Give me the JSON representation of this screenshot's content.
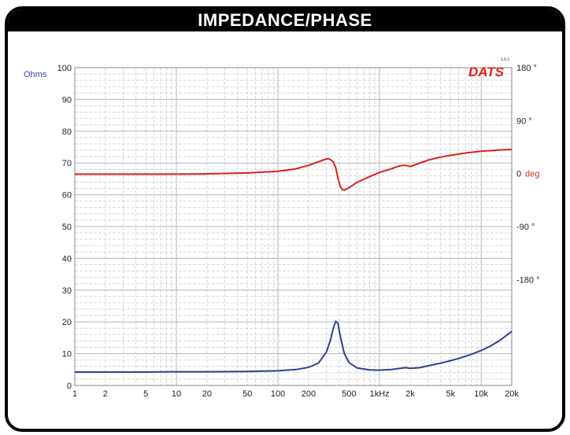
{
  "title": "IMPEDANCE/PHASE",
  "brand": "DATS",
  "version": "1.0.1",
  "colors": {
    "impedance": "#2f3f95",
    "phase": "#e01e1e",
    "grid_major": "#b8b8b8",
    "grid_minor": "#d7d7d7"
  },
  "chart_data": {
    "type": "line",
    "xscale": "log",
    "xlim": [
      1,
      20000
    ],
    "xticks": [
      {
        "v": 1,
        "label": "1"
      },
      {
        "v": 2,
        "label": "2"
      },
      {
        "v": 5,
        "label": "5"
      },
      {
        "v": 10,
        "label": "10"
      },
      {
        "v": 20,
        "label": "20"
      },
      {
        "v": 50,
        "label": "50"
      },
      {
        "v": 100,
        "label": "100"
      },
      {
        "v": 200,
        "label": "200"
      },
      {
        "v": 500,
        "label": "500"
      },
      {
        "v": 1000,
        "label": "1kHz"
      },
      {
        "v": 2000,
        "label": "2k"
      },
      {
        "v": 5000,
        "label": "5k"
      },
      {
        "v": 10000,
        "label": "10k"
      },
      {
        "v": 20000,
        "label": "20k"
      }
    ],
    "ylabel_left": "Ohms",
    "ylim_left": [
      0,
      100
    ],
    "yticks_left": [
      "0",
      "10",
      "20",
      "30",
      "40",
      "50",
      "60",
      "70",
      "80",
      "90",
      "100"
    ],
    "ylabel_right": "deg",
    "ylim_right": [
      -360,
      180
    ],
    "yticks_right": [
      {
        "v": 180,
        "label": "180 °"
      },
      {
        "v": 90,
        "label": "90 °"
      },
      {
        "v": 0,
        "label": "0"
      },
      {
        "v": -90,
        "label": "-90 °"
      },
      {
        "v": -180,
        "label": "-180 °"
      }
    ],
    "grid": true,
    "series": [
      {
        "key": "impedance",
        "axis": "left",
        "x": [
          1,
          2,
          5,
          10,
          20,
          50,
          100,
          150,
          200,
          250,
          300,
          330,
          350,
          370,
          390,
          410,
          450,
          500,
          600,
          800,
          1000,
          1300,
          1600,
          1800,
          2000,
          2500,
          3000,
          4000,
          5000,
          6000,
          8000,
          10000,
          12000,
          15000,
          20000
        ],
        "y": [
          4.2,
          4.2,
          4.2,
          4.3,
          4.3,
          4.4,
          4.6,
          5.0,
          5.7,
          7.0,
          10.5,
          14.5,
          18.0,
          20.2,
          19.5,
          15.5,
          10.0,
          7.2,
          5.5,
          4.9,
          4.8,
          5.0,
          5.4,
          5.6,
          5.4,
          5.6,
          6.2,
          7.0,
          7.8,
          8.5,
          9.8,
          11.0,
          12.2,
          14.0,
          17.0
        ]
      },
      {
        "key": "phase",
        "axis": "right",
        "x": [
          1,
          2,
          5,
          10,
          20,
          50,
          100,
          150,
          200,
          250,
          300,
          320,
          350,
          370,
          390,
          410,
          430,
          450,
          500,
          600,
          800,
          1000,
          1300,
          1500,
          1700,
          1800,
          2000,
          2500,
          3000,
          4000,
          5000,
          7000,
          10000,
          15000,
          20000
        ],
        "y": [
          -1,
          -1,
          -1,
          -1,
          -0.5,
          1,
          4,
          8,
          14,
          20,
          25,
          25,
          20,
          10,
          -8,
          -22,
          -27,
          -28,
          -24,
          -15,
          -5,
          2,
          8,
          12,
          14,
          14,
          12,
          18,
          23,
          28,
          31,
          35,
          38,
          40,
          41
        ]
      }
    ]
  }
}
